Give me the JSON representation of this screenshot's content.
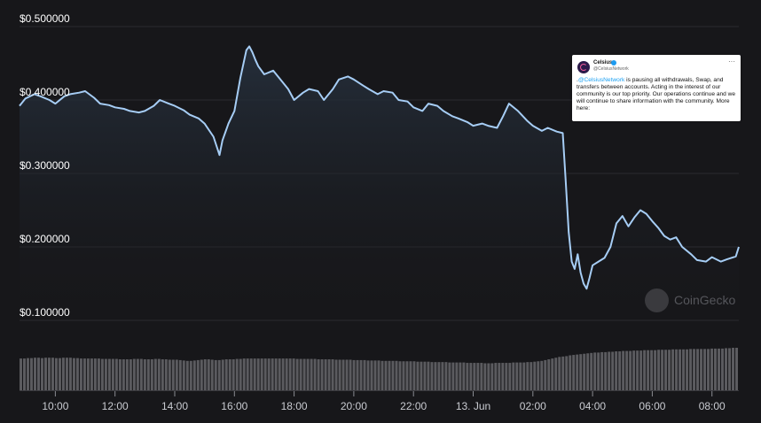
{
  "chart_data": {
    "type": "line",
    "title": "",
    "xlabel": "",
    "ylabel": "",
    "ylim": [
      0.1,
      0.5
    ],
    "y_ticks": [
      "$0.500000",
      "$0.400000",
      "$0.300000",
      "$0.200000",
      "$0.100000"
    ],
    "y_tick_values": [
      0.5,
      0.4,
      0.3,
      0.2,
      0.1
    ],
    "x_ticks": [
      "10:00",
      "12:00",
      "14:00",
      "16:00",
      "18:00",
      "20:00",
      "22:00",
      "13. Jun",
      "02:00",
      "04:00",
      "06:00",
      "08:00"
    ],
    "x_tick_values": [
      10,
      12,
      14,
      16,
      18,
      20,
      22,
      24,
      26,
      28,
      30,
      32
    ],
    "xlim": [
      8.8,
      32.9
    ],
    "grid": true,
    "series": [
      {
        "x": [
          8.8,
          9.0,
          9.3,
          9.5,
          9.8,
          10.0,
          10.3,
          10.5,
          10.8,
          11.0,
          11.3,
          11.5,
          11.8,
          12.0,
          12.3,
          12.5,
          12.8,
          13.0,
          13.3,
          13.5,
          13.8,
          14.0,
          14.3,
          14.5,
          14.8,
          15.0,
          15.3,
          15.5,
          15.6,
          15.8,
          16.0,
          16.2,
          16.4,
          16.5,
          16.6,
          16.7,
          16.8,
          17.0,
          17.3,
          17.5,
          17.8,
          18.0,
          18.3,
          18.5,
          18.8,
          19.0,
          19.3,
          19.5,
          19.8,
          20.0,
          20.3,
          20.5,
          20.8,
          21.0,
          21.3,
          21.5,
          21.8,
          22.0,
          22.3,
          22.5,
          22.8,
          23.0,
          23.3,
          23.5,
          23.8,
          24.0,
          24.3,
          24.5,
          24.8,
          25.0,
          25.2,
          25.5,
          25.8,
          26.0,
          26.3,
          26.5,
          26.8,
          27.0,
          27.1,
          27.2,
          27.3,
          27.4,
          27.5,
          27.6,
          27.7,
          27.8,
          27.9,
          28.0,
          28.2,
          28.4,
          28.6,
          28.8,
          29.0,
          29.2,
          29.4,
          29.6,
          29.8,
          30.0,
          30.2,
          30.4,
          30.6,
          30.8,
          31.0,
          31.3,
          31.5,
          31.8,
          32.0,
          32.3,
          32.5,
          32.8,
          32.9
        ],
        "values": [
          0.392,
          0.402,
          0.408,
          0.405,
          0.4,
          0.395,
          0.405,
          0.408,
          0.41,
          0.412,
          0.403,
          0.395,
          0.393,
          0.39,
          0.388,
          0.385,
          0.383,
          0.385,
          0.392,
          0.4,
          0.395,
          0.392,
          0.386,
          0.38,
          0.375,
          0.368,
          0.35,
          0.325,
          0.345,
          0.368,
          0.385,
          0.43,
          0.468,
          0.473,
          0.465,
          0.455,
          0.446,
          0.435,
          0.44,
          0.43,
          0.415,
          0.4,
          0.41,
          0.415,
          0.412,
          0.4,
          0.415,
          0.428,
          0.432,
          0.428,
          0.42,
          0.415,
          0.408,
          0.412,
          0.41,
          0.4,
          0.398,
          0.39,
          0.385,
          0.395,
          0.392,
          0.385,
          0.378,
          0.375,
          0.37,
          0.365,
          0.368,
          0.365,
          0.362,
          0.378,
          0.395,
          0.385,
          0.372,
          0.365,
          0.358,
          0.362,
          0.357,
          0.355,
          0.29,
          0.22,
          0.18,
          0.17,
          0.19,
          0.165,
          0.15,
          0.143,
          0.158,
          0.175,
          0.18,
          0.185,
          0.2,
          0.232,
          0.242,
          0.228,
          0.24,
          0.25,
          0.245,
          0.235,
          0.226,
          0.215,
          0.21,
          0.213,
          0.2,
          0.19,
          0.182,
          0.18,
          0.186,
          0.18,
          0.183,
          0.187,
          0.2
        ]
      }
    ],
    "volume": [
      80,
      80,
      81,
      81,
      82,
      82,
      81,
      82,
      82,
      82,
      81,
      81,
      82,
      82,
      82,
      81,
      81,
      80,
      80,
      80,
      80,
      80,
      80,
      79,
      79,
      79,
      79,
      79,
      78,
      78,
      78,
      78,
      79,
      79,
      79,
      78,
      78,
      78,
      79,
      79,
      78,
      78,
      77,
      77,
      77,
      76,
      75,
      74,
      74,
      75,
      76,
      77,
      78,
      78,
      77,
      76,
      76,
      77,
      78,
      78,
      78,
      79,
      79,
      80,
      80,
      80,
      80,
      80,
      80,
      80,
      80,
      80,
      80,
      80,
      80,
      80,
      80,
      80,
      79,
      79,
      79,
      79,
      79,
      79,
      78,
      78,
      78,
      78,
      78,
      77,
      77,
      77,
      77,
      77,
      76,
      76,
      76,
      76,
      75,
      75,
      75,
      75,
      74,
      74,
      74,
      74,
      74,
      73,
      73,
      73,
      73,
      73,
      72,
      72,
      72,
      72,
      71,
      71,
      71,
      71,
      71,
      70,
      70,
      70,
      70,
      70,
      69,
      69,
      69,
      69,
      69,
      68,
      68,
      68,
      69,
      69,
      69,
      69,
      69,
      70,
      70,
      70,
      70,
      71,
      71,
      72,
      73,
      74,
      76,
      78,
      80,
      82,
      84,
      85,
      86,
      88,
      89,
      90,
      91,
      92,
      93,
      94,
      95,
      95,
      96,
      96,
      97,
      97,
      98,
      98,
      99,
      99,
      99,
      100,
      100,
      100,
      101,
      101,
      101,
      101,
      102,
      102,
      102,
      102,
      103,
      103,
      103,
      103,
      103,
      104,
      104,
      104,
      104,
      104,
      104,
      105,
      105,
      105,
      105,
      106,
      106,
      107,
      107
    ],
    "colors": {
      "line": "#a6cdf5",
      "area_top": "#26303d",
      "volume": "#5b5b5f",
      "grid": "#2b2b30",
      "background": "#17171a"
    }
  },
  "overlays": {
    "tweet": {
      "name": "Celsius",
      "handle": "@CelsiusNetwork",
      "more": "···",
      "body_prefix": ".",
      "mention": "@CelsiusNetwork",
      "body_text": " is pausing all withdrawals, Swap, and transfers between accounts. Acting in the interest of our community is our top priority. Our operations continue and we will continue to share information with the community. More here:"
    },
    "watermark": {
      "text": "CoinGecko"
    }
  }
}
